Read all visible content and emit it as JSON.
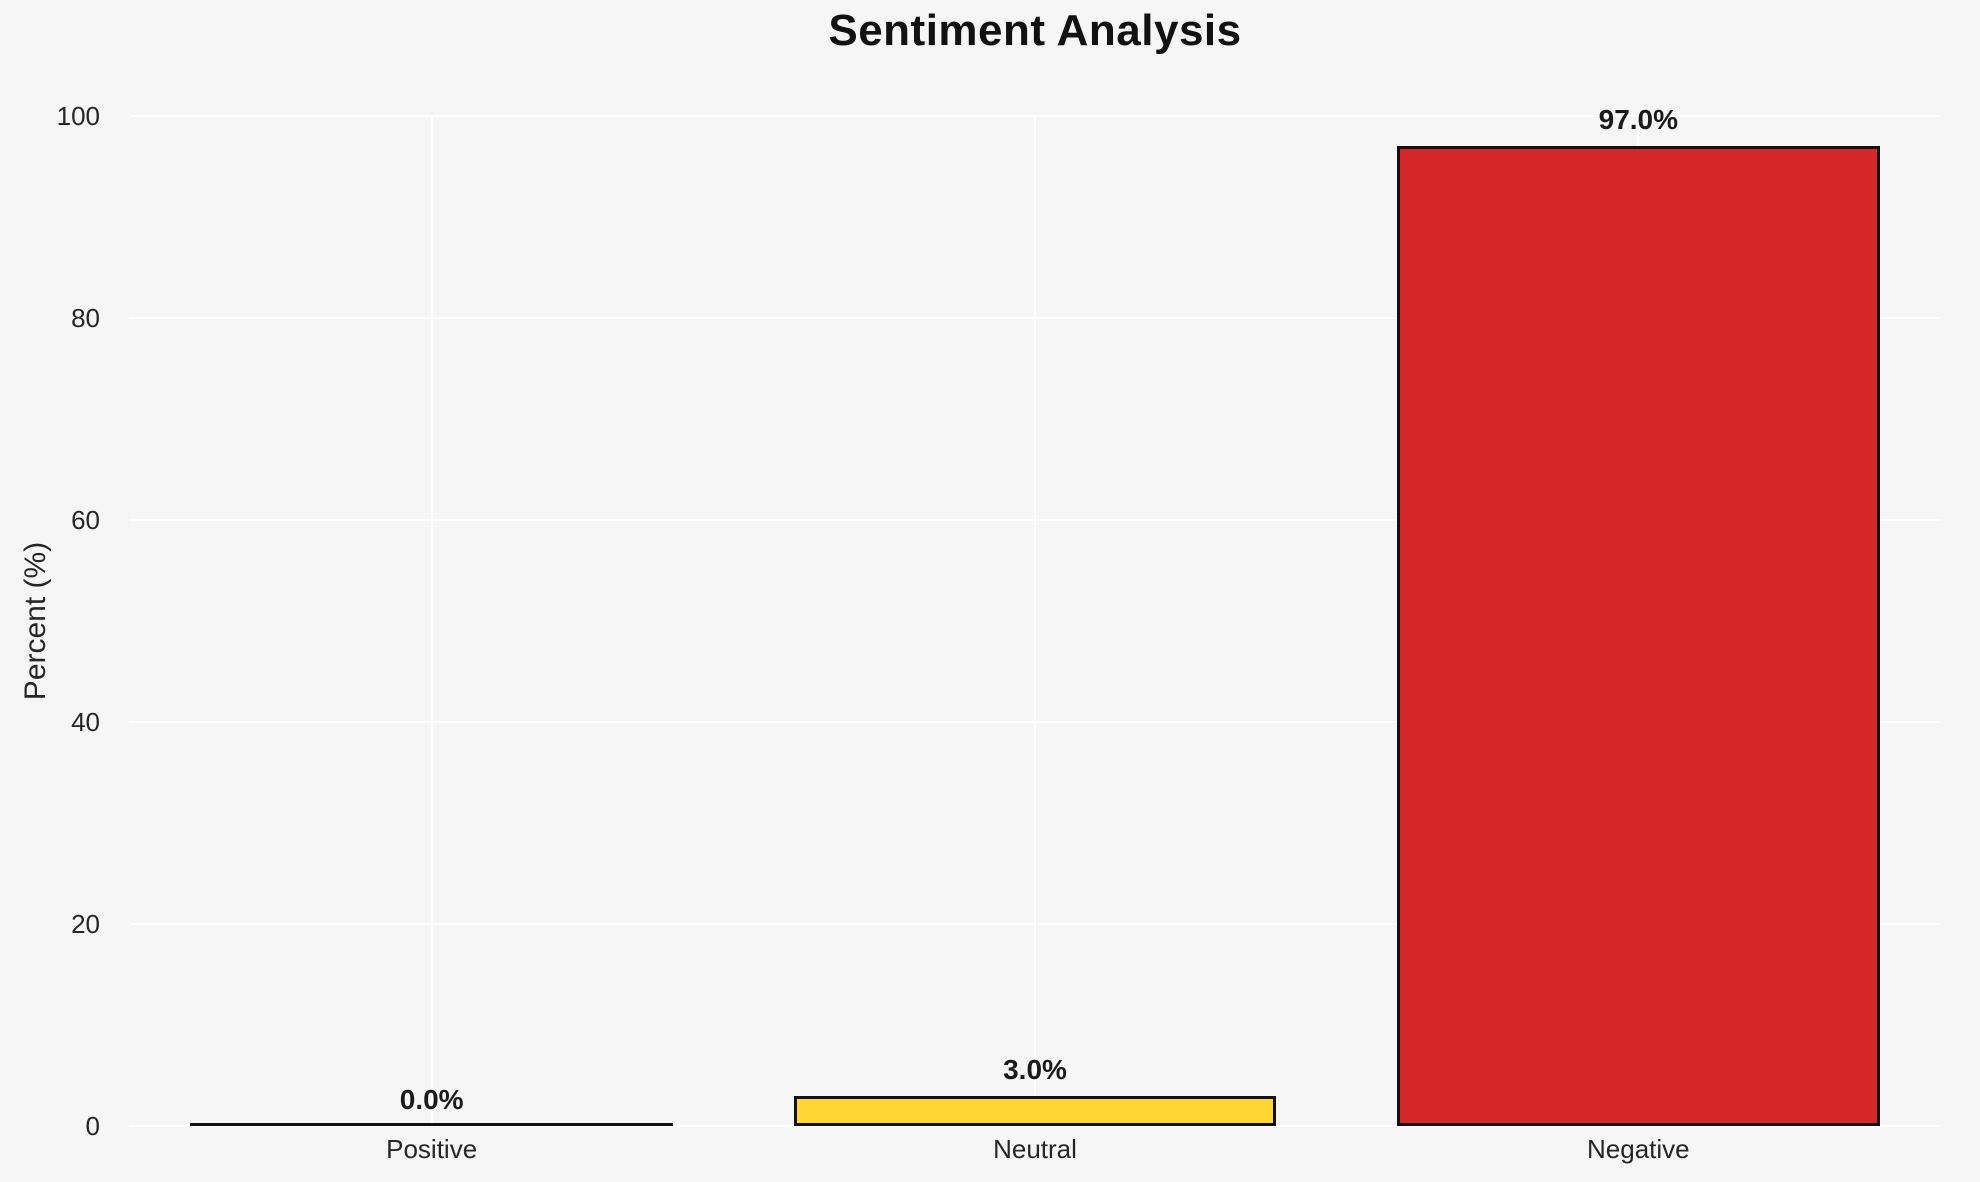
{
  "chart_data": {
    "type": "bar",
    "title": "Sentiment Analysis",
    "xlabel": "",
    "ylabel": "Percent (%)",
    "categories": [
      "Positive",
      "Neutral",
      "Negative"
    ],
    "values": [
      0.0,
      3.0,
      97.0
    ],
    "value_labels": [
      "0.0%",
      "3.0%",
      "97.0%"
    ],
    "bar_colors": [
      null,
      "#FFD633",
      "#D62728"
    ],
    "bar_edge_color": "#111111",
    "ylim": [
      0,
      100
    ],
    "yticks": [
      0,
      20,
      40,
      60,
      80,
      100
    ],
    "grid": "on",
    "grid_color": "#FFFFFF",
    "background_color": "#F6F6F6",
    "legend": "none"
  }
}
